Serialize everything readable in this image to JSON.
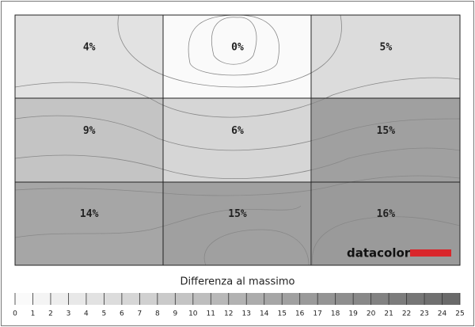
{
  "chart_data": {
    "type": "uniformity",
    "values": [
      [
        4,
        0,
        5
      ],
      [
        9,
        6,
        15
      ],
      [
        14,
        15,
        16
      ]
    ],
    "value_labels": [
      [
        "4%",
        "0%",
        "5%"
      ],
      [
        "9%",
        "6%",
        "15%"
      ],
      [
        "14%",
        "15%",
        "16%"
      ]
    ],
    "legend_title": "Differenza al massimo",
    "colorbar_lim": [
      0,
      25
    ],
    "colorbar_ticks": [
      0,
      1,
      2,
      3,
      4,
      5,
      6,
      7,
      8,
      9,
      10,
      11,
      12,
      13,
      14,
      15,
      16,
      17,
      18,
      19,
      20,
      21,
      22,
      23,
      24,
      25
    ],
    "brand": "datacolor",
    "brand_color": "#d9262b"
  }
}
